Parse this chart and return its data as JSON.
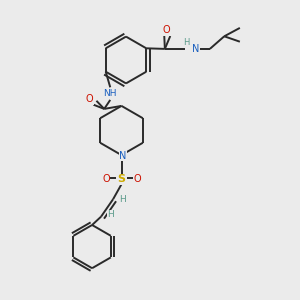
{
  "bg_color": "#ebebeb",
  "bond_color": "#2a2a2a",
  "N_color": "#1a5fbf",
  "O_color": "#cc1100",
  "S_color": "#ccaa00",
  "H_color": "#5a9a8a",
  "line_width": 1.4,
  "fig_width": 3.0,
  "fig_height": 3.0,
  "dpi": 100,
  "xlim": [
    0,
    10
  ],
  "ylim": [
    0,
    10
  ]
}
